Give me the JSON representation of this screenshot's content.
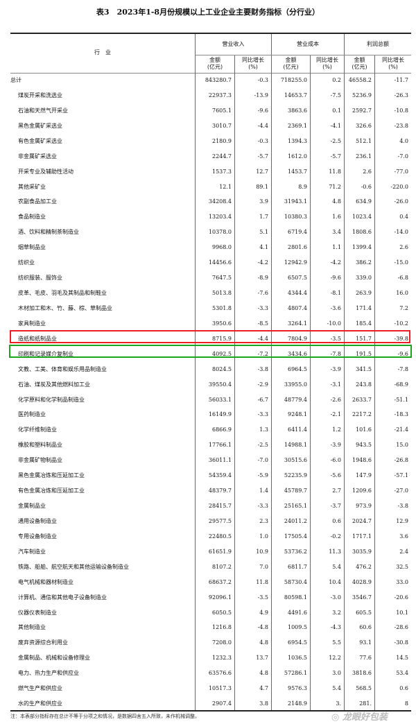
{
  "title": "表3　2023年1-8月份规模以上工业企业主要财务指标（分行业）",
  "header": {
    "industry": "行　业",
    "groups": [
      "营业收入",
      "营业成本",
      "利润总额"
    ],
    "amount": "金额",
    "amount_unit": "(亿元)",
    "growth": "同比增长",
    "growth_unit": "(%)"
  },
  "rows": [
    {
      "name": "总计",
      "v": [
        "843280.7",
        "-0.3",
        "718255.0",
        "0.2",
        "46558.2",
        "-11.7"
      ]
    },
    {
      "name": "煤炭开采和洗选业",
      "v": [
        "22937.3",
        "-13.9",
        "14653.7",
        "-7.5",
        "5236.9",
        "-26.3"
      ]
    },
    {
      "name": "石油和天然气开采业",
      "v": [
        "7605.1",
        "-9.6",
        "3863.6",
        "0.1",
        "2592.7",
        "-10.8"
      ]
    },
    {
      "name": "黑色金属矿采选业",
      "v": [
        "3010.7",
        "-4.4",
        "2369.1",
        "-4.1",
        "326.6",
        "-23.8"
      ]
    },
    {
      "name": "有色金属矿采选业",
      "v": [
        "2180.9",
        "-0.3",
        "1394.3",
        "-2.5",
        "512.1",
        "4.0"
      ]
    },
    {
      "name": "非金属矿采选业",
      "v": [
        "2244.7",
        "-5.7",
        "1612.0",
        "-5.7",
        "236.1",
        "-7.0"
      ]
    },
    {
      "name": "开采专业及辅助性活动",
      "v": [
        "1537.3",
        "12.7",
        "1453.7",
        "11.8",
        "2.6",
        "-77.0"
      ]
    },
    {
      "name": "其他采矿业",
      "v": [
        "12.1",
        "89.1",
        "8.9",
        "71.2",
        "-0.6",
        "-220.0"
      ]
    },
    {
      "name": "农副食品加工业",
      "v": [
        "34208.4",
        "3.9",
        "31943.1",
        "4.8",
        "634.9",
        "-26.0"
      ]
    },
    {
      "name": "食品制造业",
      "v": [
        "13203.4",
        "1.7",
        "10380.3",
        "1.6",
        "1023.4",
        "0.4"
      ]
    },
    {
      "name": "酒、饮料和精制茶制造业",
      "v": [
        "10378.0",
        "5.1",
        "6719.4",
        "3.4",
        "1808.6",
        "-14.0"
      ]
    },
    {
      "name": "烟草制品业",
      "v": [
        "9968.0",
        "4.1",
        "2801.6",
        "1.1",
        "1399.4",
        "2.6"
      ]
    },
    {
      "name": "纺织业",
      "v": [
        "14456.6",
        "-4.2",
        "12942.9",
        "-4.2",
        "386.2",
        "-15.0"
      ]
    },
    {
      "name": "纺织服装、服饰业",
      "v": [
        "7647.5",
        "-8.9",
        "6507.5",
        "-9.6",
        "339.0",
        "-6.8"
      ]
    },
    {
      "name": "皮革、毛皮、羽毛及其制品和制鞋业",
      "v": [
        "5013.8",
        "-7.6",
        "4344.4",
        "-8.1",
        "263.9",
        "16.0"
      ]
    },
    {
      "name": "木材加工和木、竹、藤、棕、草制品业",
      "v": [
        "5301.8",
        "-3.3",
        "4807.4",
        "-3.6",
        "171.4",
        "7.2"
      ]
    },
    {
      "name": "家具制造业",
      "v": [
        "3950.6",
        "-8.5",
        "3264.1",
        "-10.0",
        "185.4",
        "-10.2"
      ]
    },
    {
      "name": "造纸和纸制品业",
      "v": [
        "8715.9",
        "-4.4",
        "7804.9",
        "-3.5",
        "151.7",
        "-39.8"
      ]
    },
    {
      "name": "印刷和记录媒介复制业",
      "v": [
        "4092.5",
        "-7.2",
        "3434.6",
        "-7.8",
        "191.5",
        "-9.6"
      ]
    },
    {
      "name": "文教、工美、体育和娱乐用品制造业",
      "v": [
        "8024.5",
        "-3.8",
        "6964.5",
        "-3.9",
        "341.5",
        "-7.8"
      ]
    },
    {
      "name": "石油、煤炭及其他燃料加工业",
      "v": [
        "39550.4",
        "-2.9",
        "33955.0",
        "-3.1",
        "243.8",
        "-68.9"
      ]
    },
    {
      "name": "化学原料和化学制品制造业",
      "v": [
        "56033.1",
        "-6.7",
        "48779.4",
        "-2.6",
        "2633.7",
        "-51.1"
      ]
    },
    {
      "name": "医药制造业",
      "v": [
        "16149.9",
        "-3.3",
        "9248.1",
        "-2.1",
        "2217.2",
        "-18.3"
      ]
    },
    {
      "name": "化学纤维制造业",
      "v": [
        "6866.9",
        "1.3",
        "6411.4",
        "1.2",
        "101.6",
        "-21.4"
      ]
    },
    {
      "name": "橡胶和塑料制品业",
      "v": [
        "17766.1",
        "-2.5",
        "14988.1",
        "-3.9",
        "943.5",
        "15.0"
      ]
    },
    {
      "name": "非金属矿物制品业",
      "v": [
        "36011.1",
        "-7.0",
        "30515.6",
        "-6.0",
        "1948.6",
        "-26.8"
      ]
    },
    {
      "name": "黑色金属冶炼和压延加工业",
      "v": [
        "54359.4",
        "-5.9",
        "52235.9",
        "-5.6",
        "147.9",
        "-57.1"
      ]
    },
    {
      "name": "有色金属冶炼和压延加工业",
      "v": [
        "48379.7",
        "1.4",
        "45789.7",
        "2.7",
        "1209.6",
        "-27.0"
      ]
    },
    {
      "name": "金属制品业",
      "v": [
        "28415.7",
        "-3.3",
        "25165.1",
        "-3.7",
        "973.9",
        "-3.8"
      ]
    },
    {
      "name": "通用设备制造业",
      "v": [
        "29577.5",
        "2.3",
        "24011.2",
        "0.6",
        "2024.7",
        "12.9"
      ]
    },
    {
      "name": "专用设备制造业",
      "v": [
        "22480.5",
        "1.0",
        "17505.4",
        "-0.2",
        "1717.1",
        "3.6"
      ]
    },
    {
      "name": "汽车制造业",
      "v": [
        "61651.9",
        "10.9",
        "53736.2",
        "11.3",
        "3035.9",
        "2.4"
      ]
    },
    {
      "name": "铁路、船舶、航空航天和其他运输设备制造业",
      "v": [
        "8107.2",
        "7.0",
        "6811.7",
        "5.4",
        "476.2",
        "32.5"
      ]
    },
    {
      "name": "电气机械和器材制造业",
      "v": [
        "68637.2",
        "11.8",
        "58730.4",
        "10.4",
        "4028.9",
        "33.0"
      ]
    },
    {
      "name": "计算机、通信和其他电子设备制造业",
      "v": [
        "92096.1",
        "-3.5",
        "80598.1",
        "-3.0",
        "3546.7",
        "-20.6"
      ]
    },
    {
      "name": "仪器仪表制造业",
      "v": [
        "6050.5",
        "4.9",
        "4491.6",
        "3.2",
        "605.5",
        "10.1"
      ]
    },
    {
      "name": "其他制造业",
      "v": [
        "1216.8",
        "-4.8",
        "1009.5",
        "-4.3",
        "60.6",
        "-28.6"
      ]
    },
    {
      "name": "废弃资源综合利用业",
      "v": [
        "7208.0",
        "4.8",
        "6954.5",
        "5.5",
        "93.1",
        "-30.8"
      ]
    },
    {
      "name": "金属制品、机械和设备修理业",
      "v": [
        "1232.3",
        "13.7",
        "1036.5",
        "12.2",
        "77.6",
        "14.5"
      ]
    },
    {
      "name": "电力、热力生产和供应业",
      "v": [
        "63576.6",
        "4.8",
        "57286.1",
        "3.0",
        "3818.6",
        "53.4"
      ]
    },
    {
      "name": "燃气生产和供应业",
      "v": [
        "10517.3",
        "4.7",
        "9576.3",
        "5.4",
        "568.5",
        "0.6"
      ]
    },
    {
      "name": "水的生产和供应业",
      "v": [
        "2907.4",
        "3.8",
        "2148.9",
        "3.",
        "281.",
        "8"
      ]
    }
  ],
  "highlights": [
    {
      "row": "造纸和纸制品业",
      "color": "#ee1c25"
    },
    {
      "row": "印刷和记录媒介复制业",
      "color": "#1aa61a"
    }
  ],
  "note": "注：本表部分指标存在总计不等于分项之和情况，是数据四舍五入所致，未作机械调整。",
  "watermark": "龙眼好包装"
}
